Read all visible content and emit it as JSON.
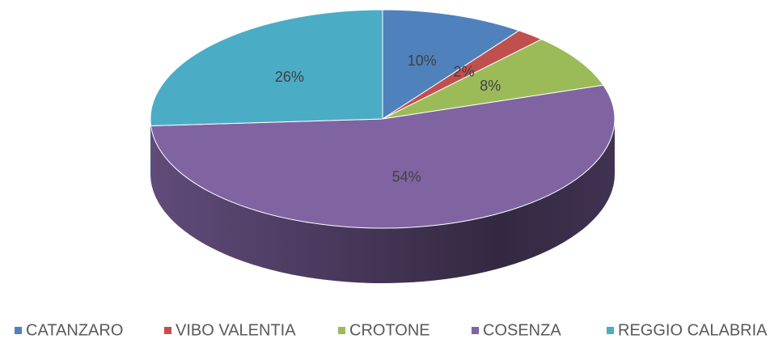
{
  "chart_data": {
    "type": "pie",
    "categories": [
      "CATANZARO",
      "VIBO VALENTIA",
      "CROTONE",
      "COSENZA",
      "REGGIO CALABRIA"
    ],
    "values": [
      10,
      2,
      8,
      54,
      26
    ],
    "value_labels": [
      "10%",
      "2%",
      "8%",
      "54%",
      "26%"
    ],
    "colors": [
      "#4f81bd",
      "#c0504d",
      "#9bbb59",
      "#8064a2",
      "#4bacc6"
    ],
    "legend": "bottom"
  }
}
